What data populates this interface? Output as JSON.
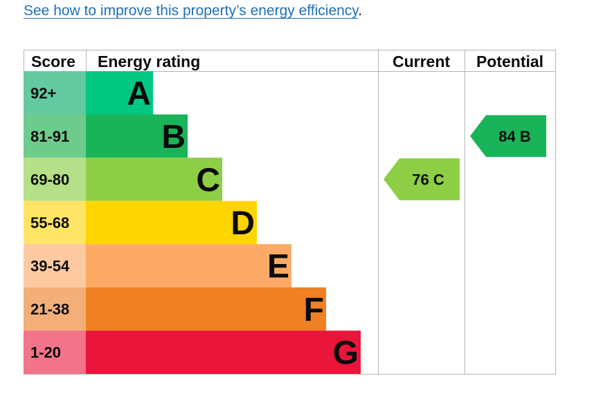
{
  "link": {
    "text": "See how to improve this property’s energy efficiency",
    "suffix": "."
  },
  "chart_data": {
    "type": "bar",
    "headers": {
      "score": "Score",
      "rating": "Energy rating",
      "current": "Current",
      "potential": "Potential"
    },
    "bands": [
      {
        "letter": "A",
        "range": "92+",
        "color": "#00c781",
        "score_color": "#62c9a0"
      },
      {
        "letter": "B",
        "range": "81-91",
        "color": "#19b459",
        "score_color": "#6dcb8b"
      },
      {
        "letter": "C",
        "range": "69-80",
        "color": "#8dce46",
        "score_color": "#b5df88"
      },
      {
        "letter": "D",
        "range": "55-68",
        "color": "#ffd500",
        "score_color": "#ffe566"
      },
      {
        "letter": "E",
        "range": "39-54",
        "color": "#fcaa65",
        "score_color": "#fdc9a0"
      },
      {
        "letter": "F",
        "range": "21-38",
        "color": "#ef8023",
        "score_color": "#f4ae78"
      },
      {
        "letter": "G",
        "range": "1-20",
        "color": "#e9153b",
        "score_color": "#f1748a"
      }
    ],
    "current": {
      "value": 76,
      "band": "C",
      "label": "76  C"
    },
    "potential": {
      "value": 84,
      "band": "B",
      "label": "84  B"
    }
  }
}
